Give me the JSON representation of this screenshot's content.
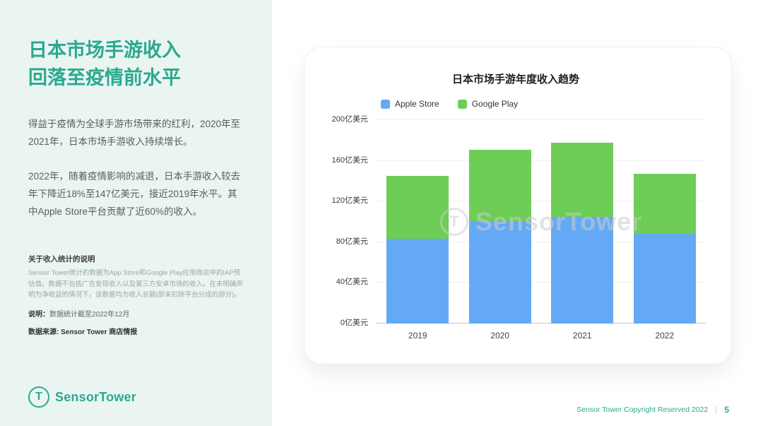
{
  "page": {
    "accent_color": "#2ba98e",
    "footer": {
      "copyright": "Sensor Tower Copyright Reserved 2022",
      "separator": "|",
      "page_number": "5"
    }
  },
  "sidebar": {
    "title_line1": "日本市场手游收入",
    "title_line2": "回落至疫情前水平",
    "paragraph1": "得益于疫情为全球手游市场带来的红利，2020年至2021年，日本市场手游收入持续增长。",
    "paragraph2": "2022年，随着疫情影响的减退，日本手游收入较去年下降近18%至147亿美元，接近2019年水平。其中Apple Store平台贡献了近60%的收入。",
    "notes_heading": "关于收入统计的说明",
    "notes_body": "Sensor Tower统计的数据为App Store和Google Play应用商店中的IAP预估值。数据不包括广告变现收入以及第三方安卓市场的收入。在未明确声明为净收益的情况下，该数据均为收入总额(即未扣除平台分成的部分)。",
    "note_label": "说明：",
    "note_text": "数据统计截至2022年12月",
    "source_label": "数据来源:",
    "source_text": " Sensor Tower 商店情报",
    "logo_text": "SensorTower"
  },
  "chart_data": {
    "type": "bar",
    "stacked": true,
    "title": "日本市场手游年度收入趋势",
    "categories": [
      "2019",
      "2020",
      "2021",
      "2022"
    ],
    "series": [
      {
        "name": "Apple Store",
        "color": "#64a9f5",
        "values": [
          83,
          101,
          105,
          88
        ]
      },
      {
        "name": "Google Play",
        "color": "#6ecd57",
        "values": [
          62,
          70,
          73,
          59
        ]
      }
    ],
    "totals": [
      145,
      171,
      178,
      147
    ],
    "unit": "亿美元",
    "ylim": [
      0,
      200
    ],
    "yticks": [
      {
        "value": 0,
        "label": "0亿美元"
      },
      {
        "value": 40,
        "label": "40亿美元"
      },
      {
        "value": 80,
        "label": "80亿美元"
      },
      {
        "value": 120,
        "label": "120亿美元"
      },
      {
        "value": 160,
        "label": "160亿美元"
      },
      {
        "value": 200,
        "label": "200亿美元"
      }
    ],
    "legend_position": "top-left",
    "grid": true,
    "watermark": "SensorTower"
  }
}
